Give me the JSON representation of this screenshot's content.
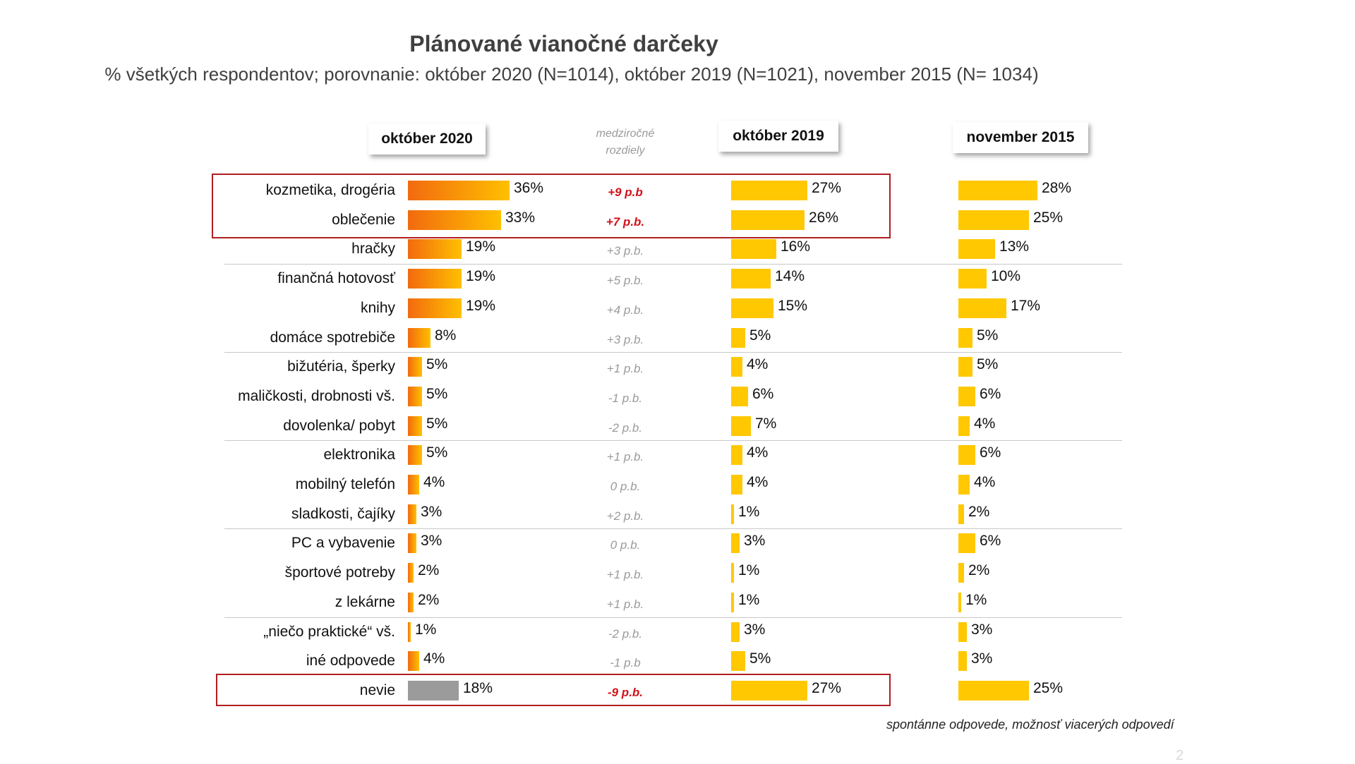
{
  "title": "Plánované vianočné darčeky",
  "subtitle": "%  všetkých respondentov; porovnanie: október 2020 (N=1014), október 2019 (N=1021), november 2015 (N= 1034)",
  "headers": {
    "col2020": "október 2020",
    "diff_line1": "medziročné",
    "diff_line2": "rozdiely",
    "col2019": "október 2019",
    "col2015": "november 2015"
  },
  "colors": {
    "gradient_start": "#f26a0f",
    "gradient_end": "#ffc000",
    "bar_other": "#ffc800",
    "bar_unknown": "#9b9b9b",
    "highlight": "#d0121b"
  },
  "chart_data": {
    "type": "bar",
    "orientation": "horizontal",
    "categories": [
      "kozmetika, drogéria",
      "oblečenie",
      "hračky",
      "finančná hotovosť",
      "knihy",
      "domáce spotrebiče",
      "bižutéria, šperky",
      "maličkosti, drobnosti vš.",
      "dovolenka/ pobyt",
      "elektronika",
      "mobilný telefón",
      "sladkosti, čajíky",
      "PC a vybavenie",
      "športové potreby",
      "z lekárne",
      "„niečo praktické“ vš.",
      "iné odpovede",
      "nevie"
    ],
    "series": [
      {
        "name": "október 2020",
        "values": [
          36,
          33,
          19,
          19,
          19,
          8,
          5,
          5,
          5,
          5,
          4,
          3,
          3,
          2,
          2,
          1,
          4,
          18
        ],
        "labels": [
          "36%",
          "33%",
          "19%",
          "19%",
          "19%",
          "8%",
          "5%",
          "5%",
          "5%",
          "5%",
          "4%",
          "3%",
          "3%",
          "2%",
          "2%",
          "1%",
          "4%",
          "18%"
        ]
      },
      {
        "name": "október 2019",
        "values": [
          27,
          26,
          16,
          14,
          15,
          5,
          4,
          6,
          7,
          4,
          4,
          1,
          3,
          1,
          1,
          3,
          5,
          27
        ],
        "labels": [
          "27%",
          "26%",
          "16%",
          "14%",
          "15%",
          "5%",
          "4%",
          "6%",
          "7%",
          "4%",
          "4%",
          "1%",
          "3%",
          "1%",
          "1%",
          "3%",
          "5%",
          "27%"
        ]
      },
      {
        "name": "november 2015",
        "values": [
          28,
          25,
          13,
          10,
          17,
          5,
          5,
          6,
          4,
          6,
          4,
          2,
          6,
          2,
          1,
          3,
          3,
          25
        ],
        "labels": [
          "28%",
          "25%",
          "13%",
          "10%",
          "17%",
          "5%",
          "5%",
          "6%",
          "4%",
          "6%",
          "4%",
          "2%",
          "6%",
          "2%",
          "1%",
          "3%",
          "3%",
          "25%"
        ]
      }
    ],
    "differences": [
      "+9 p.b",
      "+7 p.b.",
      "+3 p.b.",
      "+5 p.b.",
      "+4 p.b.",
      "+3 p.b.",
      "+1 p.b.",
      "-1 p.b.",
      "-2 p.b.",
      "+1 p.b.",
      "0 p.b.",
      "+2 p.b.",
      "0 p.b.",
      "+1 p.b.",
      "+1 p.b.",
      "-2 p.b.",
      "-1 p.b",
      "-9 p.b."
    ],
    "highlighted_differences": [
      0,
      1,
      17
    ],
    "gray_bar_category": 17,
    "unit": "%"
  },
  "note": "spontánne odpovede, možnosť viacerých odpovedí",
  "page_number": "2"
}
